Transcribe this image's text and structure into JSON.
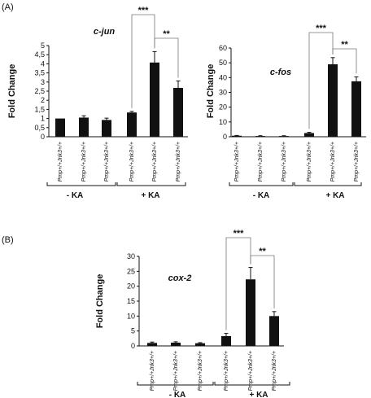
{
  "panels": [
    {
      "label": "(A)",
      "anchor": "A"
    },
    {
      "label": "(B)",
      "anchor": "B"
    }
  ],
  "chart_data": [
    {
      "type": "bar",
      "title": "c-jun",
      "ylabel": "Fold Change",
      "ylim": [
        0,
        5
      ],
      "yticks": [
        "0",
        "0,5",
        "1",
        "1,5",
        "2",
        "2,5",
        "3",
        "3,5",
        "4",
        "4,5",
        "5"
      ],
      "categories": [
        "Pmp+/+Jnk3+/+",
        "Pmp+/+Jnk3+/+",
        "Pmp+/+Jnk3+/+",
        "Pmp+/+Jnk3+/+",
        "Pmp+/+Jnk3+/+",
        "Pmp+/+Jnk3+/+"
      ],
      "values": [
        1.0,
        1.05,
        0.92,
        1.33,
        4.07,
        2.68
      ],
      "errors": [
        0.0,
        0.1,
        0.1,
        0.06,
        0.6,
        0.38
      ],
      "groups": [
        "- KA",
        "+ KA"
      ],
      "significance": [
        {
          "label": "***",
          "from": 3,
          "to": 4
        },
        {
          "label": "**",
          "from": 4,
          "to": 5
        }
      ]
    },
    {
      "type": "bar",
      "title": "c-fos",
      "ylabel": "Fold Change",
      "ylim": [
        0,
        60
      ],
      "yticks": [
        "0",
        "10",
        "20",
        "30",
        "40",
        "50",
        "60"
      ],
      "categories": [
        "Pmp+/+Jnk3+/+",
        "Pmp+/+Jnk3+/+",
        "Pmp+/+Jnk3+/+",
        "Pmp+/+Jnk3+/+",
        "Pmp+/+Jnk3+/+",
        "Pmp+/+Jnk3+/+"
      ],
      "values": [
        0.7,
        0.5,
        0.5,
        2.5,
        49,
        37.5
      ],
      "errors": [
        0.2,
        0.2,
        0.2,
        0.5,
        4.5,
        3.0
      ],
      "groups": [
        "- KA",
        "+ KA"
      ],
      "significance": [
        {
          "label": "***",
          "from": 3,
          "to": 4
        },
        {
          "label": "**",
          "from": 4,
          "to": 5
        }
      ]
    },
    {
      "type": "bar",
      "title": "cox-2",
      "ylabel": "Fold Change",
      "ylim": [
        0,
        30
      ],
      "yticks": [
        "0",
        "5",
        "10",
        "15",
        "20",
        "25",
        "30"
      ],
      "categories": [
        "Pmp+/+Jnk3+/+",
        "Pmp+/+Jnk3+/+",
        "Pmp+/+Jnk3+/+",
        "Pmp+/+Jnk3+/+",
        "Pmp+/+Jnk3+/+",
        "Pmp+/+Jnk3+/+"
      ],
      "values": [
        1.0,
        1.1,
        0.9,
        3.3,
        22.3,
        10.0
      ],
      "errors": [
        0.3,
        0.3,
        0.2,
        0.9,
        4.0,
        1.5
      ],
      "groups": [
        "- KA",
        "+ KA"
      ],
      "significance": [
        {
          "label": "***",
          "from": 3,
          "to": 4
        },
        {
          "label": "**",
          "from": 4,
          "to": 5
        }
      ]
    }
  ]
}
